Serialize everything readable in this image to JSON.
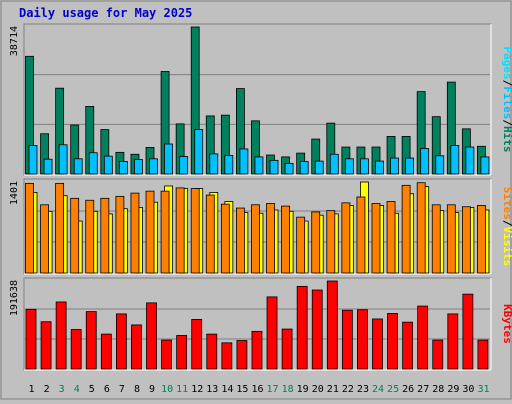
{
  "title": "Daily usage for May 2025",
  "colors": {
    "background": "#c0c0c0",
    "title": "#0000cc",
    "grid": "#808080",
    "hits": "#00805c",
    "files": "#00c0ff",
    "pages": "#00e0ff",
    "visits": "#ffff00",
    "sites": "#ff8000",
    "kbytes": "#ff0000"
  },
  "chart_data": [
    {
      "type": "bar",
      "panel": "hits-files-pages",
      "ylabel_parts": [
        "Pages",
        "/",
        "Files",
        "/",
        "Hits"
      ],
      "ymax_label": "38714",
      "ylim": [
        0,
        38714
      ],
      "categories": [
        "1",
        "2",
        "3",
        "4",
        "5",
        "6",
        "7",
        "8",
        "9",
        "10",
        "11",
        "12",
        "13",
        "14",
        "15",
        "16",
        "17",
        "18",
        "19",
        "20",
        "21",
        "22",
        "23",
        "24",
        "25",
        "26",
        "27",
        "28",
        "29",
        "30",
        "31"
      ],
      "series": [
        {
          "name": "Hits",
          "values": [
            31000,
            10600,
            22600,
            12900,
            17800,
            11700,
            5700,
            5200,
            7000,
            27000,
            13200,
            38714,
            15300,
            15500,
            22500,
            14000,
            5000,
            4500,
            5500,
            9200,
            13400,
            7100,
            7100,
            7100,
            9900,
            9900,
            21700,
            15100,
            24200,
            11900,
            7300
          ]
        },
        {
          "name": "Files",
          "values": [
            7500,
            3900,
            7700,
            4000,
            5600,
            4700,
            3300,
            3800,
            4000,
            7900,
            4600,
            11700,
            5300,
            4900,
            6600,
            4500,
            3600,
            2800,
            3300,
            3400,
            5200,
            4000,
            4000,
            3400,
            4200,
            4200,
            6700,
            4800,
            7500,
            7100,
            4500
          ]
        },
        {
          "name": "Pages",
          "values": [
            7500,
            3900,
            7700,
            4000,
            5600,
            4700,
            3300,
            3800,
            4000,
            7900,
            4600,
            11700,
            5300,
            4900,
            6600,
            4500,
            3600,
            2800,
            3300,
            3400,
            5200,
            4000,
            4000,
            3400,
            4200,
            4200,
            6700,
            4800,
            7500,
            7100,
            4500
          ]
        }
      ]
    },
    {
      "type": "bar",
      "panel": "visits-sites",
      "ylabel_parts": [
        "Sites",
        "/",
        "Visits"
      ],
      "ymax_label": "1401",
      "ylim": [
        0,
        1401
      ],
      "series": [
        {
          "name": "Visits",
          "values": [
            1240,
            950,
            1190,
            800,
            950,
            910,
            990,
            1010,
            1090,
            1340,
            1300,
            1300,
            1240,
            1100,
            930,
            920,
            970,
            950,
            800,
            890,
            910,
            1040,
            1401,
            1040,
            920,
            1220,
            1330,
            960,
            930,
            1010,
            970
          ]
        },
        {
          "name": "Sites",
          "values": [
            1380,
            1050,
            1380,
            1150,
            1120,
            1150,
            1180,
            1230,
            1260,
            1260,
            1310,
            1300,
            1200,
            1060,
            1000,
            1050,
            1070,
            1030,
            860,
            940,
            960,
            1080,
            1170,
            1070,
            1100,
            1350,
            1390,
            1050,
            1050,
            1020,
            1040
          ]
        }
      ]
    },
    {
      "type": "bar",
      "panel": "kbytes",
      "ylabel_parts": [
        "KBytes"
      ],
      "ymax_label": "191638",
      "ylim": [
        0,
        191638
      ],
      "series": [
        {
          "name": "KBytes",
          "values": [
            130000,
            103000,
            146000,
            86000,
            125000,
            76000,
            120000,
            96000,
            144000,
            63000,
            73000,
            108000,
            76000,
            57000,
            62000,
            82000,
            157000,
            87000,
            180000,
            172000,
            191638,
            128000,
            129000,
            109000,
            121000,
            102000,
            137000,
            63000,
            120000,
            163000,
            63000
          ]
        }
      ]
    }
  ]
}
